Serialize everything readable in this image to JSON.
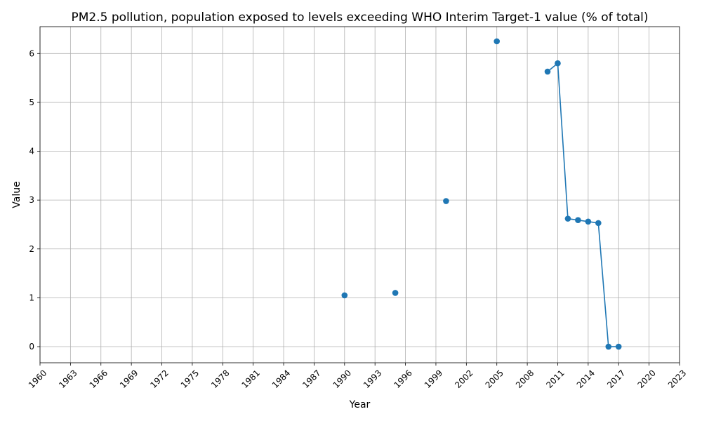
{
  "chart_data": {
    "type": "line",
    "title": "PM2.5 pollution, population exposed to levels exceeding WHO Interim Target-1 value (% of total)",
    "xlabel": "Year",
    "ylabel": "Value",
    "xlim": [
      1960,
      2023
    ],
    "ylim": [
      -0.33,
      6.55
    ],
    "xticks": [
      1960,
      1963,
      1966,
      1969,
      1972,
      1975,
      1978,
      1981,
      1984,
      1987,
      1990,
      1993,
      1996,
      1999,
      2002,
      2005,
      2008,
      2011,
      2014,
      2017,
      2020,
      2023
    ],
    "yticks": [
      0,
      1,
      2,
      3,
      4,
      5,
      6
    ],
    "grid": true,
    "color": "#1f77b4",
    "series": [
      {
        "x": [
          1990,
          1995,
          2000,
          2005,
          2010,
          2011,
          2012,
          2013,
          2014,
          2015,
          2016,
          2017
        ],
        "values": [
          1.05,
          1.1,
          2.98,
          6.25,
          5.63,
          5.8,
          2.62,
          2.59,
          2.56,
          2.53,
          0.0,
          0.0
        ]
      }
    ]
  }
}
